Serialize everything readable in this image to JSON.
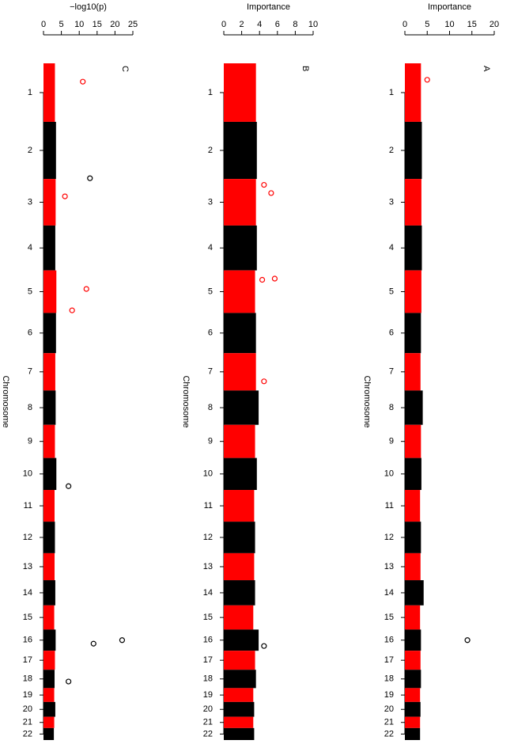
{
  "chart_data": [
    {
      "type": "manhattan",
      "title": "C",
      "xlabel": "−log10(p)",
      "ylabel": "Chromosome",
      "xlim": [
        0,
        25
      ],
      "xticks": [
        0,
        5,
        10,
        15,
        20,
        25
      ],
      "colors": [
        "#ff0000",
        "#000000"
      ],
      "chromosomes": [
        "1",
        "2",
        "3",
        "4",
        "5",
        "6",
        "7",
        "8",
        "9",
        "10",
        "11",
        "12",
        "13",
        "14",
        "15",
        "16",
        "17",
        "18",
        "19",
        "20",
        "21",
        "22"
      ],
      "lengths": [
        249,
        243,
        198,
        191,
        181,
        171,
        159,
        146,
        141,
        136,
        135,
        134,
        115,
        107,
        103,
        90,
        81,
        78,
        59,
        63,
        48,
        51
      ],
      "values": [
        3.2,
        3.5,
        3.4,
        3.3,
        3.6,
        3.5,
        3.3,
        3.4,
        3.2,
        3.6,
        3.1,
        3.2,
        3.1,
        3.3,
        3.0,
        3.4,
        3.2,
        3.1,
        3.0,
        3.3,
        3.0,
        2.9
      ],
      "peaks": {
        "chromosome": [
          "1",
          "2",
          "3",
          "5",
          "5",
          "10",
          "16",
          "16",
          "18"
        ],
        "position": [
          78,
          240,
          74,
          79,
          170,
          120,
          45,
          60,
          50
        ],
        "values": [
          11,
          13,
          6,
          12,
          8,
          7,
          22,
          14,
          7
        ]
      }
    },
    {
      "type": "manhattan",
      "title": "B",
      "xlabel": "Importance",
      "ylabel": "Chromosome",
      "xlim": [
        0,
        10
      ],
      "xticks": [
        0,
        2,
        4,
        6,
        8,
        10
      ],
      "colors": [
        "#ff0000",
        "#000000"
      ],
      "chromosomes": [
        "1",
        "2",
        "3",
        "4",
        "5",
        "6",
        "7",
        "8",
        "9",
        "10",
        "11",
        "12",
        "13",
        "14",
        "15",
        "16",
        "17",
        "18",
        "19",
        "20",
        "21",
        "22"
      ],
      "lengths": [
        249,
        243,
        198,
        191,
        181,
        171,
        159,
        146,
        141,
        136,
        135,
        134,
        115,
        107,
        103,
        90,
        81,
        78,
        59,
        63,
        48,
        51
      ],
      "values": [
        3.6,
        3.7,
        3.6,
        3.7,
        3.5,
        3.6,
        3.6,
        3.9,
        3.5,
        3.7,
        3.4,
        3.5,
        3.4,
        3.5,
        3.3,
        3.9,
        3.5,
        3.6,
        3.3,
        3.4,
        3.3,
        3.4
      ],
      "peaks": {
        "chromosome": [
          "3",
          "3",
          "5",
          "5",
          "7",
          "16"
        ],
        "position": [
          25,
          60,
          35,
          40,
          120,
          70
        ],
        "values": [
          4.5,
          5.3,
          5.7,
          4.3,
          4.5,
          4.5
        ]
      }
    },
    {
      "type": "manhattan",
      "title": "A",
      "xlabel": "Importance",
      "ylabel": "Chromosome",
      "xlim": [
        0,
        20
      ],
      "xticks": [
        0,
        5,
        10,
        15,
        20
      ],
      "colors": [
        "#ff0000",
        "#000000"
      ],
      "chromosomes": [
        "1",
        "2",
        "3",
        "4",
        "5",
        "6",
        "7",
        "8",
        "9",
        "10",
        "11",
        "12",
        "13",
        "14",
        "15",
        "16",
        "17",
        "18",
        "19",
        "20",
        "21",
        "22"
      ],
      "lengths": [
        249,
        243,
        198,
        191,
        181,
        171,
        159,
        146,
        141,
        136,
        135,
        134,
        115,
        107,
        103,
        90,
        81,
        78,
        59,
        63,
        48,
        51
      ],
      "values": [
        3.6,
        3.8,
        3.7,
        3.8,
        3.7,
        3.6,
        3.5,
        4.0,
        3.6,
        3.7,
        3.4,
        3.6,
        3.5,
        4.2,
        3.4,
        3.6,
        3.5,
        3.6,
        3.4,
        3.5,
        3.4,
        3.4
      ],
      "peaks": {
        "chromosome": [
          "1",
          "16"
        ],
        "position": [
          70,
          45
        ],
        "values": [
          5,
          14
        ]
      }
    }
  ]
}
